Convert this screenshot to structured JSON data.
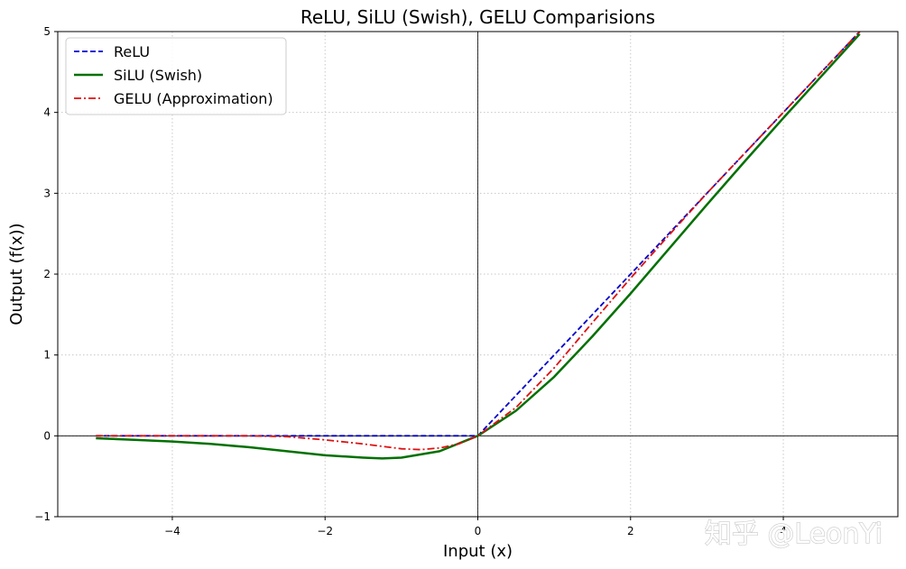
{
  "chart_data": {
    "type": "line",
    "title": "ReLU, SiLU (Swish), GELU Comparisions",
    "xlabel": "Input (x)",
    "ylabel": "Output (f(x))",
    "xlim": [
      -5.5,
      5.5
    ],
    "ylim": [
      -1,
      5
    ],
    "xticks": [
      -4,
      -2,
      0,
      2,
      4
    ],
    "xtick_labels": [
      "−4",
      "−2",
      "0",
      "2",
      "4"
    ],
    "yticks": [
      -1,
      0,
      1,
      2,
      3,
      4,
      5
    ],
    "ytick_labels": [
      "−1",
      "0",
      "1",
      "2",
      "3",
      "4",
      "5"
    ],
    "grid": true,
    "grid_style": "dotted",
    "zero_lines": true,
    "legend_position": "upper-left",
    "series": [
      {
        "name": "ReLU",
        "color": "#0000cc",
        "style": "dashed",
        "x": [
          -5,
          -4,
          -3,
          -2,
          -1,
          0,
          1,
          2,
          3,
          4,
          5
        ],
        "y": [
          0,
          0,
          0,
          0,
          0,
          0,
          1,
          2,
          3,
          4,
          5
        ]
      },
      {
        "name": "SiLU (Swish)",
        "color": "#007000",
        "style": "solid",
        "x": [
          -5,
          -4.5,
          -4,
          -3.5,
          -3,
          -2.5,
          -2,
          -1.5,
          -1.25,
          -1,
          -0.5,
          0,
          0.5,
          1,
          1.5,
          2,
          2.5,
          3,
          3.5,
          4,
          4.5,
          5
        ],
        "y": [
          -0.03,
          -0.05,
          -0.07,
          -0.1,
          -0.14,
          -0.19,
          -0.24,
          -0.27,
          -0.28,
          -0.27,
          -0.19,
          0,
          0.31,
          0.73,
          1.23,
          1.76,
          2.31,
          2.86,
          3.4,
          3.93,
          4.45,
          4.97
        ]
      },
      {
        "name": "GELU (Approximation)",
        "color": "#dd1111",
        "style": "dashdot",
        "x": [
          -5,
          -4,
          -3,
          -2.5,
          -2,
          -1.5,
          -1,
          -0.75,
          -0.5,
          -0.25,
          0,
          0.5,
          1,
          1.5,
          2,
          2.5,
          3,
          4,
          5
        ],
        "y": [
          0,
          0,
          0,
          -0.01,
          -0.05,
          -0.1,
          -0.16,
          -0.17,
          -0.15,
          -0.1,
          0,
          0.35,
          0.84,
          1.4,
          1.95,
          2.48,
          3,
          4,
          5
        ]
      }
    ]
  },
  "watermark": {
    "text": "知乎 @LeonYi"
  }
}
